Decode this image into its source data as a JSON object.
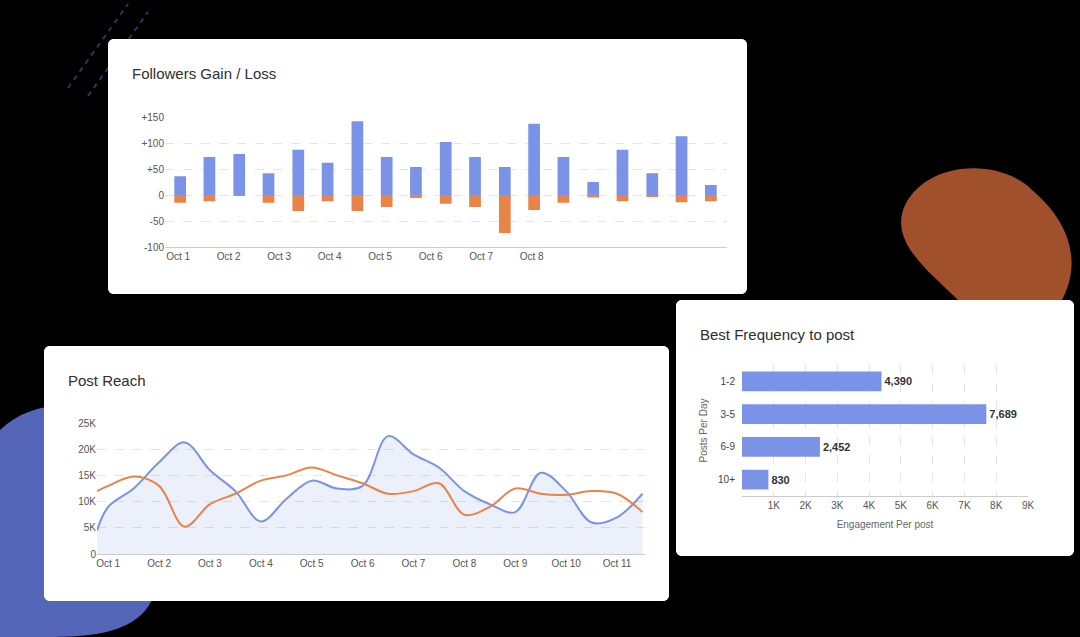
{
  "chart_data": [
    {
      "type": "bar",
      "title": "Followers Gain / Loss",
      "x": [
        1.04,
        1.62,
        2.21,
        2.79,
        3.38,
        3.96,
        4.55,
        5.13,
        5.71,
        6.3,
        6.88,
        7.47,
        8.05,
        8.63,
        9.22,
        9.8,
        10.39,
        10.97,
        11.55
      ],
      "series": [
        {
          "color": "#7b93e6",
          "values": [
            36,
            73,
            79,
            42,
            87,
            62,
            142,
            73,
            54,
            102,
            73,
            54,
            137,
            73,
            25,
            87,
            42,
            113,
            19
          ]
        },
        {
          "color": "#e8834a",
          "values": [
            -15,
            -12,
            -2,
            -15,
            -31,
            -12,
            -31,
            -23,
            -6,
            -17,
            -23,
            -73,
            -29,
            -15,
            -5,
            -12,
            -4,
            -14,
            -12
          ]
        }
      ],
      "stacked": true,
      "xlim": [
        0.74,
        11.87
      ],
      "xticks": [
        {
          "value": 1,
          "label": "Oct 1"
        },
        {
          "value": 2,
          "label": "Oct 2"
        },
        {
          "value": 3,
          "label": "Oct 3"
        },
        {
          "value": 4,
          "label": "Oct 4"
        },
        {
          "value": 5,
          "label": "Oct 5"
        },
        {
          "value": 6,
          "label": "Oct 6"
        },
        {
          "value": 7,
          "label": "Oct 7"
        },
        {
          "value": 8,
          "label": "Oct 8"
        }
      ],
      "ylim": [
        -100,
        150
      ],
      "yticks": [
        -100,
        -50,
        0,
        {
          "value": 50,
          "label": "+50"
        },
        {
          "value": 100,
          "label": "+100"
        },
        {
          "value": 150,
          "label": "+150"
        }
      ],
      "grid": true
    },
    {
      "type": "line",
      "title": "Post Reach",
      "x": [
        0.78,
        1,
        1.5,
        2,
        2.5,
        3,
        3.5,
        4,
        4.5,
        5,
        5.5,
        6,
        6.5,
        7,
        7.5,
        8,
        8.5,
        9,
        9.5,
        10,
        10.5,
        11,
        11.5
      ],
      "series": [
        {
          "type": "area",
          "color": "#7b93e6",
          "values": [
            4500,
            9000,
            12500,
            17500,
            21300,
            16000,
            12000,
            6200,
            10500,
            14000,
            12500,
            13000,
            22500,
            19000,
            16500,
            12000,
            9500,
            8000,
            15500,
            12000,
            6000,
            7000,
            11500
          ]
        },
        {
          "type": "line",
          "color": "#e8834a",
          "values": [
            12000,
            13000,
            14800,
            13000,
            5200,
            9500,
            11500,
            14000,
            15000,
            16500,
            15000,
            13500,
            11500,
            12000,
            13500,
            7500,
            9000,
            12500,
            11500,
            11300,
            12000,
            11500,
            8000
          ]
        }
      ],
      "line_style": "smooth",
      "xlim": [
        0.78,
        11.55
      ],
      "xticks": [
        {
          "value": 1,
          "label": "Oct 1"
        },
        {
          "value": 2,
          "label": "Oct 2"
        },
        {
          "value": 3,
          "label": "Oct 3"
        },
        {
          "value": 4,
          "label": "Oct 4"
        },
        {
          "value": 5,
          "label": "Oct 5"
        },
        {
          "value": 6,
          "label": "Oct 6"
        },
        {
          "value": 7,
          "label": "Oct 7"
        },
        {
          "value": 8,
          "label": "Oct 8"
        },
        {
          "value": 9,
          "label": "Oct 9"
        },
        {
          "value": 10,
          "label": "Oct 10"
        },
        {
          "value": 11,
          "label": "Oct 11"
        }
      ],
      "ylim": [
        0,
        25000
      ],
      "yticks": [
        0,
        {
          "value": 5000,
          "label": "5K"
        },
        {
          "value": 10000,
          "label": "10K"
        },
        {
          "value": 15000,
          "label": "15K"
        },
        {
          "value": 20000,
          "label": "20K"
        },
        {
          "value": 25000,
          "label": "25K"
        }
      ],
      "grid": true
    },
    {
      "type": "bar",
      "title": "Best Frequency to post",
      "orientation": "horizontal",
      "categories": [
        "1-2",
        "3-5",
        "6-9",
        "10+"
      ],
      "values": [
        4390,
        7689,
        2452,
        830
      ],
      "value_labels": [
        "4,390",
        "7,689",
        "2,452",
        "830"
      ],
      "data_labels": true,
      "color": "#7b93e6",
      "xlabel": "Engagement Per post",
      "ylabel": "Posts Per Day",
      "xlim": [
        0,
        9000
      ],
      "xticks": [
        {
          "value": 1000,
          "label": "1K"
        },
        {
          "value": 2000,
          "label": "2K"
        },
        {
          "value": 3000,
          "label": "3K"
        },
        {
          "value": 4000,
          "label": "4K"
        },
        {
          "value": 5000,
          "label": "5K"
        },
        {
          "value": 6000,
          "label": "6K"
        },
        {
          "value": 7000,
          "label": "7K"
        },
        {
          "value": 8000,
          "label": "8K"
        },
        {
          "value": 9000,
          "label": "9K"
        }
      ],
      "grid": true
    }
  ]
}
